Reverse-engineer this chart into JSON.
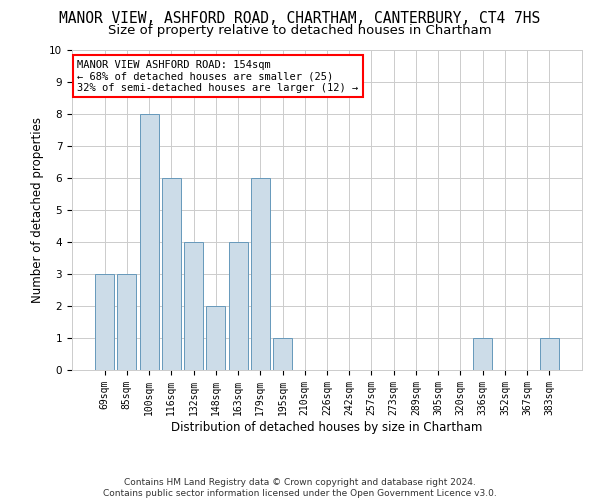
{
  "title": "MANOR VIEW, ASHFORD ROAD, CHARTHAM, CANTERBURY, CT4 7HS",
  "subtitle": "Size of property relative to detached houses in Chartham",
  "xlabel": "Distribution of detached houses by size in Chartham",
  "ylabel": "Number of detached properties",
  "categories": [
    "69sqm",
    "85sqm",
    "100sqm",
    "116sqm",
    "132sqm",
    "148sqm",
    "163sqm",
    "179sqm",
    "195sqm",
    "210sqm",
    "226sqm",
    "242sqm",
    "257sqm",
    "273sqm",
    "289sqm",
    "305sqm",
    "320sqm",
    "336sqm",
    "352sqm",
    "367sqm",
    "383sqm"
  ],
  "values": [
    3,
    3,
    8,
    6,
    4,
    2,
    4,
    6,
    1,
    0,
    0,
    0,
    0,
    0,
    0,
    0,
    0,
    1,
    0,
    0,
    1
  ],
  "bar_color": "#ccdce8",
  "bar_edge_color": "#6699bb",
  "ylim": [
    0,
    10
  ],
  "yticks": [
    0,
    1,
    2,
    3,
    4,
    5,
    6,
    7,
    8,
    9,
    10
  ],
  "grid_color": "#cccccc",
  "background_color": "white",
  "annotation_text": "MANOR VIEW ASHFORD ROAD: 154sqm\n← 68% of detached houses are smaller (25)\n32% of semi-detached houses are larger (12) →",
  "annotation_box_color": "white",
  "annotation_box_edge_color": "red",
  "footer": "Contains HM Land Registry data © Crown copyright and database right 2024.\nContains public sector information licensed under the Open Government Licence v3.0.",
  "title_fontsize": 10.5,
  "subtitle_fontsize": 9.5,
  "xlabel_fontsize": 8.5,
  "ylabel_fontsize": 8.5,
  "tick_fontsize": 7,
  "annotation_fontsize": 7.5,
  "footer_fontsize": 6.5
}
